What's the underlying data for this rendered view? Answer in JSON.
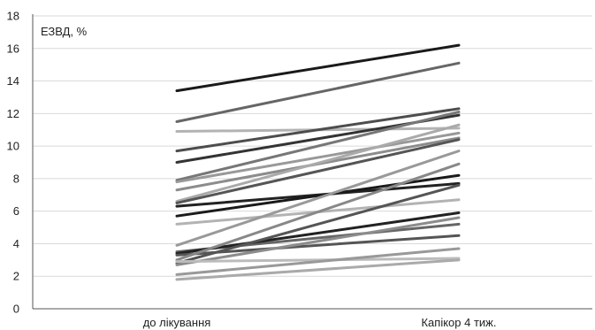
{
  "chart_data": {
    "type": "line",
    "title": "",
    "ylabel": "ЕЗВД, %",
    "xlabel": "",
    "categories": [
      "до лікування",
      "Капікор 4 тиж."
    ],
    "ylim": [
      0,
      18
    ],
    "yticks": [
      0,
      2,
      4,
      6,
      8,
      10,
      12,
      14,
      16,
      18
    ],
    "grid": true,
    "series": [
      {
        "values": [
          13.4,
          16.2
        ],
        "color": "#1a1a1a"
      },
      {
        "values": [
          11.5,
          15.1
        ],
        "color": "#666666"
      },
      {
        "values": [
          10.9,
          11.1
        ],
        "color": "#b3b3b3"
      },
      {
        "values": [
          9.7,
          12.3
        ],
        "color": "#4d4d4d"
      },
      {
        "values": [
          9.0,
          11.9
        ],
        "color": "#333333"
      },
      {
        "values": [
          7.9,
          12.1
        ],
        "color": "#777777"
      },
      {
        "values": [
          7.8,
          10.8
        ],
        "color": "#999999"
      },
      {
        "values": [
          7.3,
          10.5
        ],
        "color": "#8c8c8c"
      },
      {
        "values": [
          6.6,
          11.3
        ],
        "color": "#aaaaaa"
      },
      {
        "values": [
          6.5,
          10.4
        ],
        "color": "#555555"
      },
      {
        "values": [
          6.3,
          7.7
        ],
        "color": "#222222"
      },
      {
        "values": [
          5.7,
          8.2
        ],
        "color": "#1a1a1a"
      },
      {
        "values": [
          5.2,
          6.7
        ],
        "color": "#b3b3b3"
      },
      {
        "values": [
          3.9,
          9.7
        ],
        "color": "#999999"
      },
      {
        "values": [
          3.5,
          5.2
        ],
        "color": "#666666"
      },
      {
        "values": [
          3.4,
          5.9
        ],
        "color": "#222222"
      },
      {
        "values": [
          3.3,
          4.5
        ],
        "color": "#555555"
      },
      {
        "values": [
          3.0,
          8.9
        ],
        "color": "#888888"
      },
      {
        "values": [
          2.8,
          7.6
        ],
        "color": "#555555"
      },
      {
        "values": [
          2.7,
          5.6
        ],
        "color": "#8c8c8c"
      },
      {
        "values": [
          2.9,
          3.1
        ],
        "color": "#bbbbbb"
      },
      {
        "values": [
          2.1,
          3.7
        ],
        "color": "#999999"
      },
      {
        "values": [
          1.8,
          3.0
        ],
        "color": "#aaaaaa"
      }
    ],
    "colors": {
      "grid": "#d9d9d9",
      "axis": "#555555",
      "text": "#222222"
    }
  }
}
